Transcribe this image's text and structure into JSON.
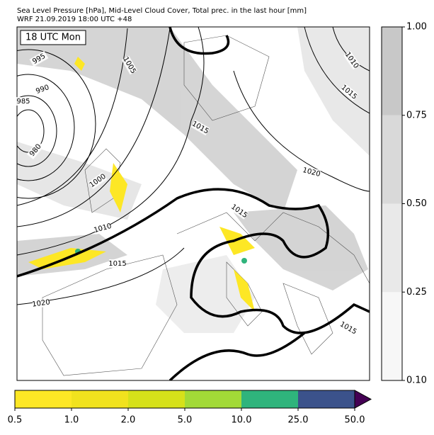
{
  "header": {
    "title": "Sea Level Pressure [hPa], Mid-Level Cloud Cover, Total prec. in the last hour [mm]",
    "subtitle": "WRF 21.09.2019 18:00 UTC +48"
  },
  "map": {
    "time_label": "18 UTC Mon",
    "contour_labels": [
      995,
      990,
      985,
      980,
      1000,
      1005,
      1010,
      1015,
      1020,
      1015,
      1015,
      1020,
      1015,
      1010,
      1015
    ]
  },
  "cloud_colorbar": {
    "colors": [
      "#f7f7f7",
      "#e9e9e9",
      "#d9d9d9",
      "#c8c8c8"
    ],
    "ticks": [
      {
        "value": 0.1,
        "label": "0.10"
      },
      {
        "value": 0.25,
        "label": "0.25"
      },
      {
        "value": 0.5,
        "label": "0.50"
      },
      {
        "value": 0.75,
        "label": "0.75"
      },
      {
        "value": 1,
        "label": "1.00"
      }
    ]
  },
  "precip_colorbar": {
    "colors": [
      "#fde725",
      "#f1e21e",
      "#d6e11a",
      "#a2da37",
      "#2fb47c",
      "#3b528b"
    ],
    "extend_color": "#440154",
    "ticks": [
      0.5,
      {
        "value": 1,
        "label": "1.0"
      },
      {
        "value": 2,
        "label": "2.0"
      },
      {
        "value": 5,
        "label": "5.0"
      },
      {
        "value": 10,
        "label": "10.0"
      },
      {
        "value": 25,
        "label": "25.0"
      },
      {
        "value": 50,
        "label": "50.0"
      }
    ]
  }
}
